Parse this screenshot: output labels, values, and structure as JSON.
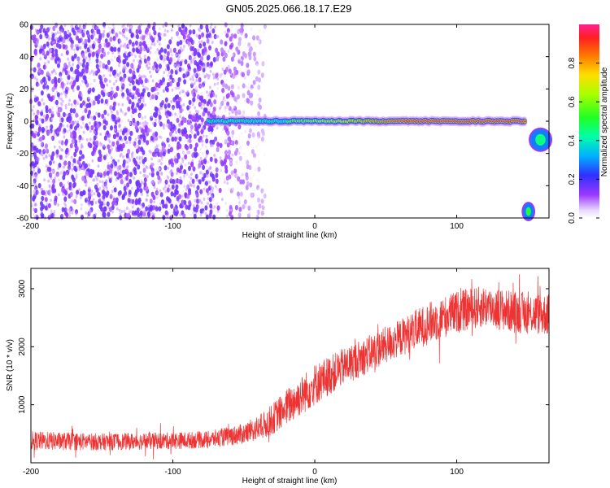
{
  "title": "GN05.2025.066.18.17.E29",
  "chart_data": [
    {
      "type": "heatmap",
      "xlabel": "Height of straight line (km)",
      "ylabel": "Frequency (Hz)",
      "xlim": [
        -200,
        165
      ],
      "ylim": [
        -60,
        60
      ],
      "x_ticks": [
        -200,
        -100,
        0,
        100
      ],
      "y_ticks": [
        -60,
        -40,
        -20,
        0,
        20,
        40,
        60
      ],
      "colorbar": {
        "label": "Normalized spectral amplitude",
        "ticks": [
          0.0,
          0.2,
          0.4,
          0.6,
          0.8
        ],
        "range": [
          0,
          1
        ]
      },
      "features": [
        {
          "kind": "noise",
          "x_range": [
            -200,
            -70
          ],
          "f_range": [
            -60,
            60
          ],
          "amplitude": 0.15
        },
        {
          "kind": "fading_noise",
          "x_range": [
            -70,
            -35
          ],
          "f_range": [
            -60,
            60
          ],
          "amplitude": 0.08
        },
        {
          "kind": "carrier",
          "x_range": [
            -75,
            148
          ],
          "f_center": 0,
          "amplitude_start": 0.35,
          "amplitude_end": 0.9
        },
        {
          "kind": "blob",
          "x_range": [
            148,
            153
          ],
          "f_range": [
            -60,
            -52
          ],
          "amplitude": 0.5
        },
        {
          "kind": "blob",
          "x_range": [
            153,
            165
          ],
          "f_range": [
            -17,
            -6
          ],
          "amplitude": 0.45
        }
      ]
    },
    {
      "type": "line",
      "xlabel": "Height of straight line (km)",
      "ylabel": "SNR (10 * v/v)",
      "xlim": [
        -200,
        165
      ],
      "ylim": [
        0,
        3350
      ],
      "x_ticks": [
        -200,
        -100,
        0,
        100
      ],
      "y_ticks": [
        1000,
        2000,
        3000
      ],
      "color": "#ee3333",
      "envelope": {
        "x": [
          -200,
          -150,
          -100,
          -75,
          -50,
          -35,
          -20,
          0,
          20,
          40,
          60,
          80,
          100,
          120,
          140,
          165
        ],
        "mean": [
          380,
          360,
          380,
          400,
          500,
          650,
          950,
          1350,
          1650,
          1900,
          2150,
          2400,
          2600,
          2700,
          2600,
          2550
        ],
        "spread": [
          200,
          180,
          180,
          180,
          220,
          300,
          400,
          450,
          400,
          400,
          400,
          450,
          450,
          450,
          450,
          450
        ]
      }
    }
  ],
  "colors": {
    "noise": "#7a1ff0",
    "series": "#ee3333"
  }
}
